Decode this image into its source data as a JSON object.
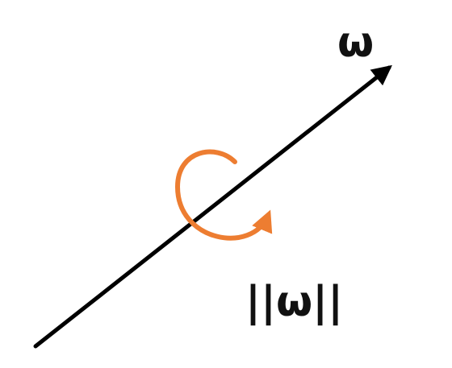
{
  "diagram": {
    "axis_label": "ω",
    "magnitude_label": "||ω||",
    "colors": {
      "axis": "#000000",
      "rotation_arrow": "#ed7d31",
      "text": "#111111",
      "background": "#ffffff"
    },
    "icons": {
      "axis_arrow": "arrow-up-right-icon",
      "rotation_arrow": "counterclockwise-rotation-icon"
    }
  }
}
